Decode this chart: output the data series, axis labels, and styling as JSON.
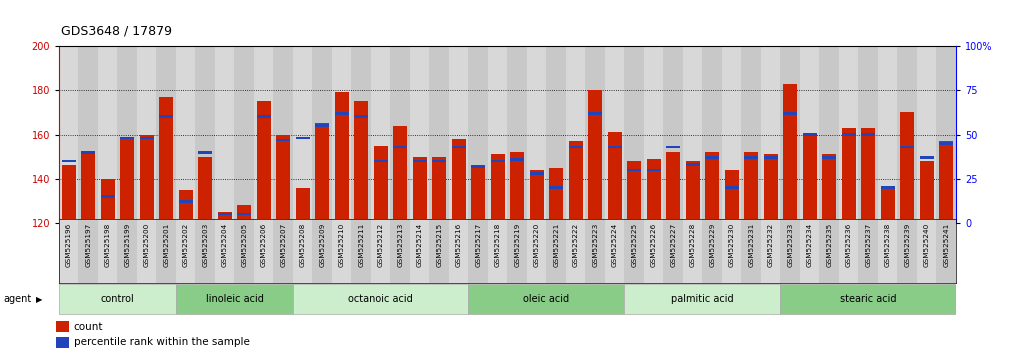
{
  "title": "GDS3648 / 17879",
  "samples": [
    "GSM525196",
    "GSM525197",
    "GSM525198",
    "GSM525199",
    "GSM525200",
    "GSM525201",
    "GSM525202",
    "GSM525203",
    "GSM525204",
    "GSM525205",
    "GSM525206",
    "GSM525207",
    "GSM525208",
    "GSM525209",
    "GSM525210",
    "GSM525211",
    "GSM525212",
    "GSM525213",
    "GSM525214",
    "GSM525215",
    "GSM525216",
    "GSM525217",
    "GSM525218",
    "GSM525219",
    "GSM525220",
    "GSM525221",
    "GSM525222",
    "GSM525223",
    "GSM525224",
    "GSM525225",
    "GSM525226",
    "GSM525227",
    "GSM525228",
    "GSM525229",
    "GSM525230",
    "GSM525231",
    "GSM525232",
    "GSM525233",
    "GSM525234",
    "GSM525235",
    "GSM525236",
    "GSM525237",
    "GSM525238",
    "GSM525239",
    "GSM525240",
    "GSM525241"
  ],
  "count_values": [
    146,
    151,
    140,
    159,
    160,
    177,
    135,
    150,
    125,
    128,
    175,
    160,
    136,
    165,
    179,
    175,
    155,
    164,
    150,
    150,
    158,
    145,
    151,
    152,
    144,
    145,
    157,
    180,
    161,
    148,
    149,
    152,
    148,
    152,
    144,
    152,
    151,
    183,
    160,
    151,
    163,
    163,
    136,
    170,
    148,
    157
  ],
  "percentile_values": [
    35,
    40,
    15,
    48,
    48,
    60,
    12,
    40,
    5,
    5,
    60,
    47,
    48,
    55,
    62,
    60,
    35,
    43,
    35,
    35,
    43,
    32,
    35,
    36,
    28,
    20,
    43,
    62,
    43,
    30,
    30,
    43,
    33,
    37,
    20,
    37,
    37,
    62,
    50,
    37,
    50,
    50,
    20,
    43,
    37,
    45
  ],
  "groups": [
    {
      "label": "control",
      "start": 0,
      "end": 6
    },
    {
      "label": "linoleic acid",
      "start": 6,
      "end": 12
    },
    {
      "label": "octanoic acid",
      "start": 12,
      "end": 21
    },
    {
      "label": "oleic acid",
      "start": 21,
      "end": 29
    },
    {
      "label": "palmitic acid",
      "start": 29,
      "end": 37
    },
    {
      "label": "stearic acid",
      "start": 37,
      "end": 46
    }
  ],
  "bar_color": "#cc2200",
  "blue_color": "#2244bb",
  "y_min": 120,
  "y_max": 200,
  "y_ticks_left": [
    120,
    140,
    160,
    180,
    200
  ],
  "y_ticks_right_vals": [
    0,
    25,
    50,
    75,
    100
  ],
  "y_ticks_right_labels": [
    "0",
    "25",
    "50",
    "75",
    "100%"
  ],
  "tick_bg_even": "#d8d8d8",
  "tick_bg_odd": "#c8c8c8",
  "group_color_light": "#cceecc",
  "group_color_dark": "#88cc88",
  "agent_label": "agent",
  "legend_count": "count",
  "legend_pct": "percentile rank within the sample"
}
